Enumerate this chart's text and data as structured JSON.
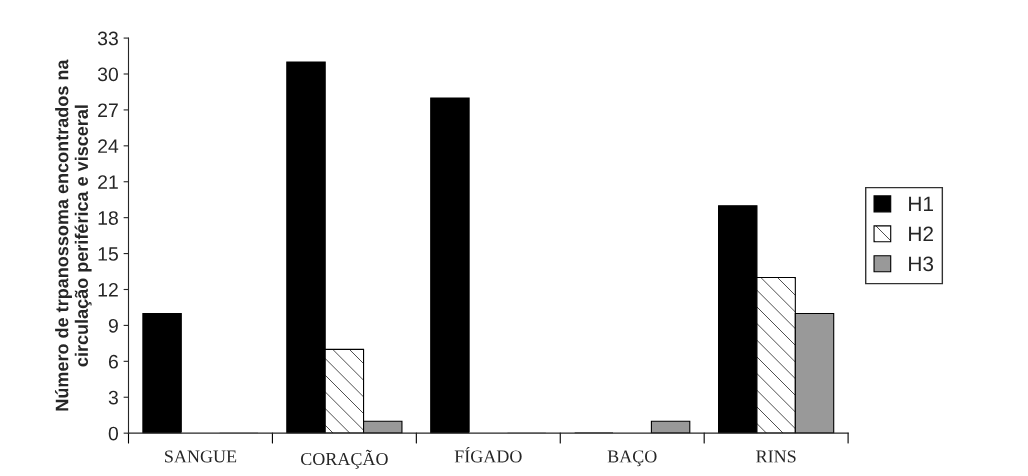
{
  "chart_data": {
    "type": "bar",
    "ylabel": "Número de trpanossoma encontrados na\ncirculação periférica e visceral",
    "categories": [
      "SANGUE",
      "CORAÇÃO",
      "FÍGADO",
      "BAÇO",
      "RINS"
    ],
    "series": [
      {
        "name": "H1",
        "color": "#000000",
        "values": [
          10,
          31,
          28,
          0,
          19
        ]
      },
      {
        "name": "H2",
        "color": "#ffffff",
        "values": [
          0,
          7,
          0,
          0,
          13
        ]
      },
      {
        "name": "H3",
        "color": "#999999",
        "values": [
          0,
          1,
          0,
          1,
          10
        ]
      }
    ],
    "ylim": [
      0,
      33
    ],
    "yticks": [
      0,
      3,
      6,
      9,
      12,
      15,
      18,
      21,
      24,
      27,
      30,
      33
    ],
    "grid": false,
    "legend": "right"
  }
}
